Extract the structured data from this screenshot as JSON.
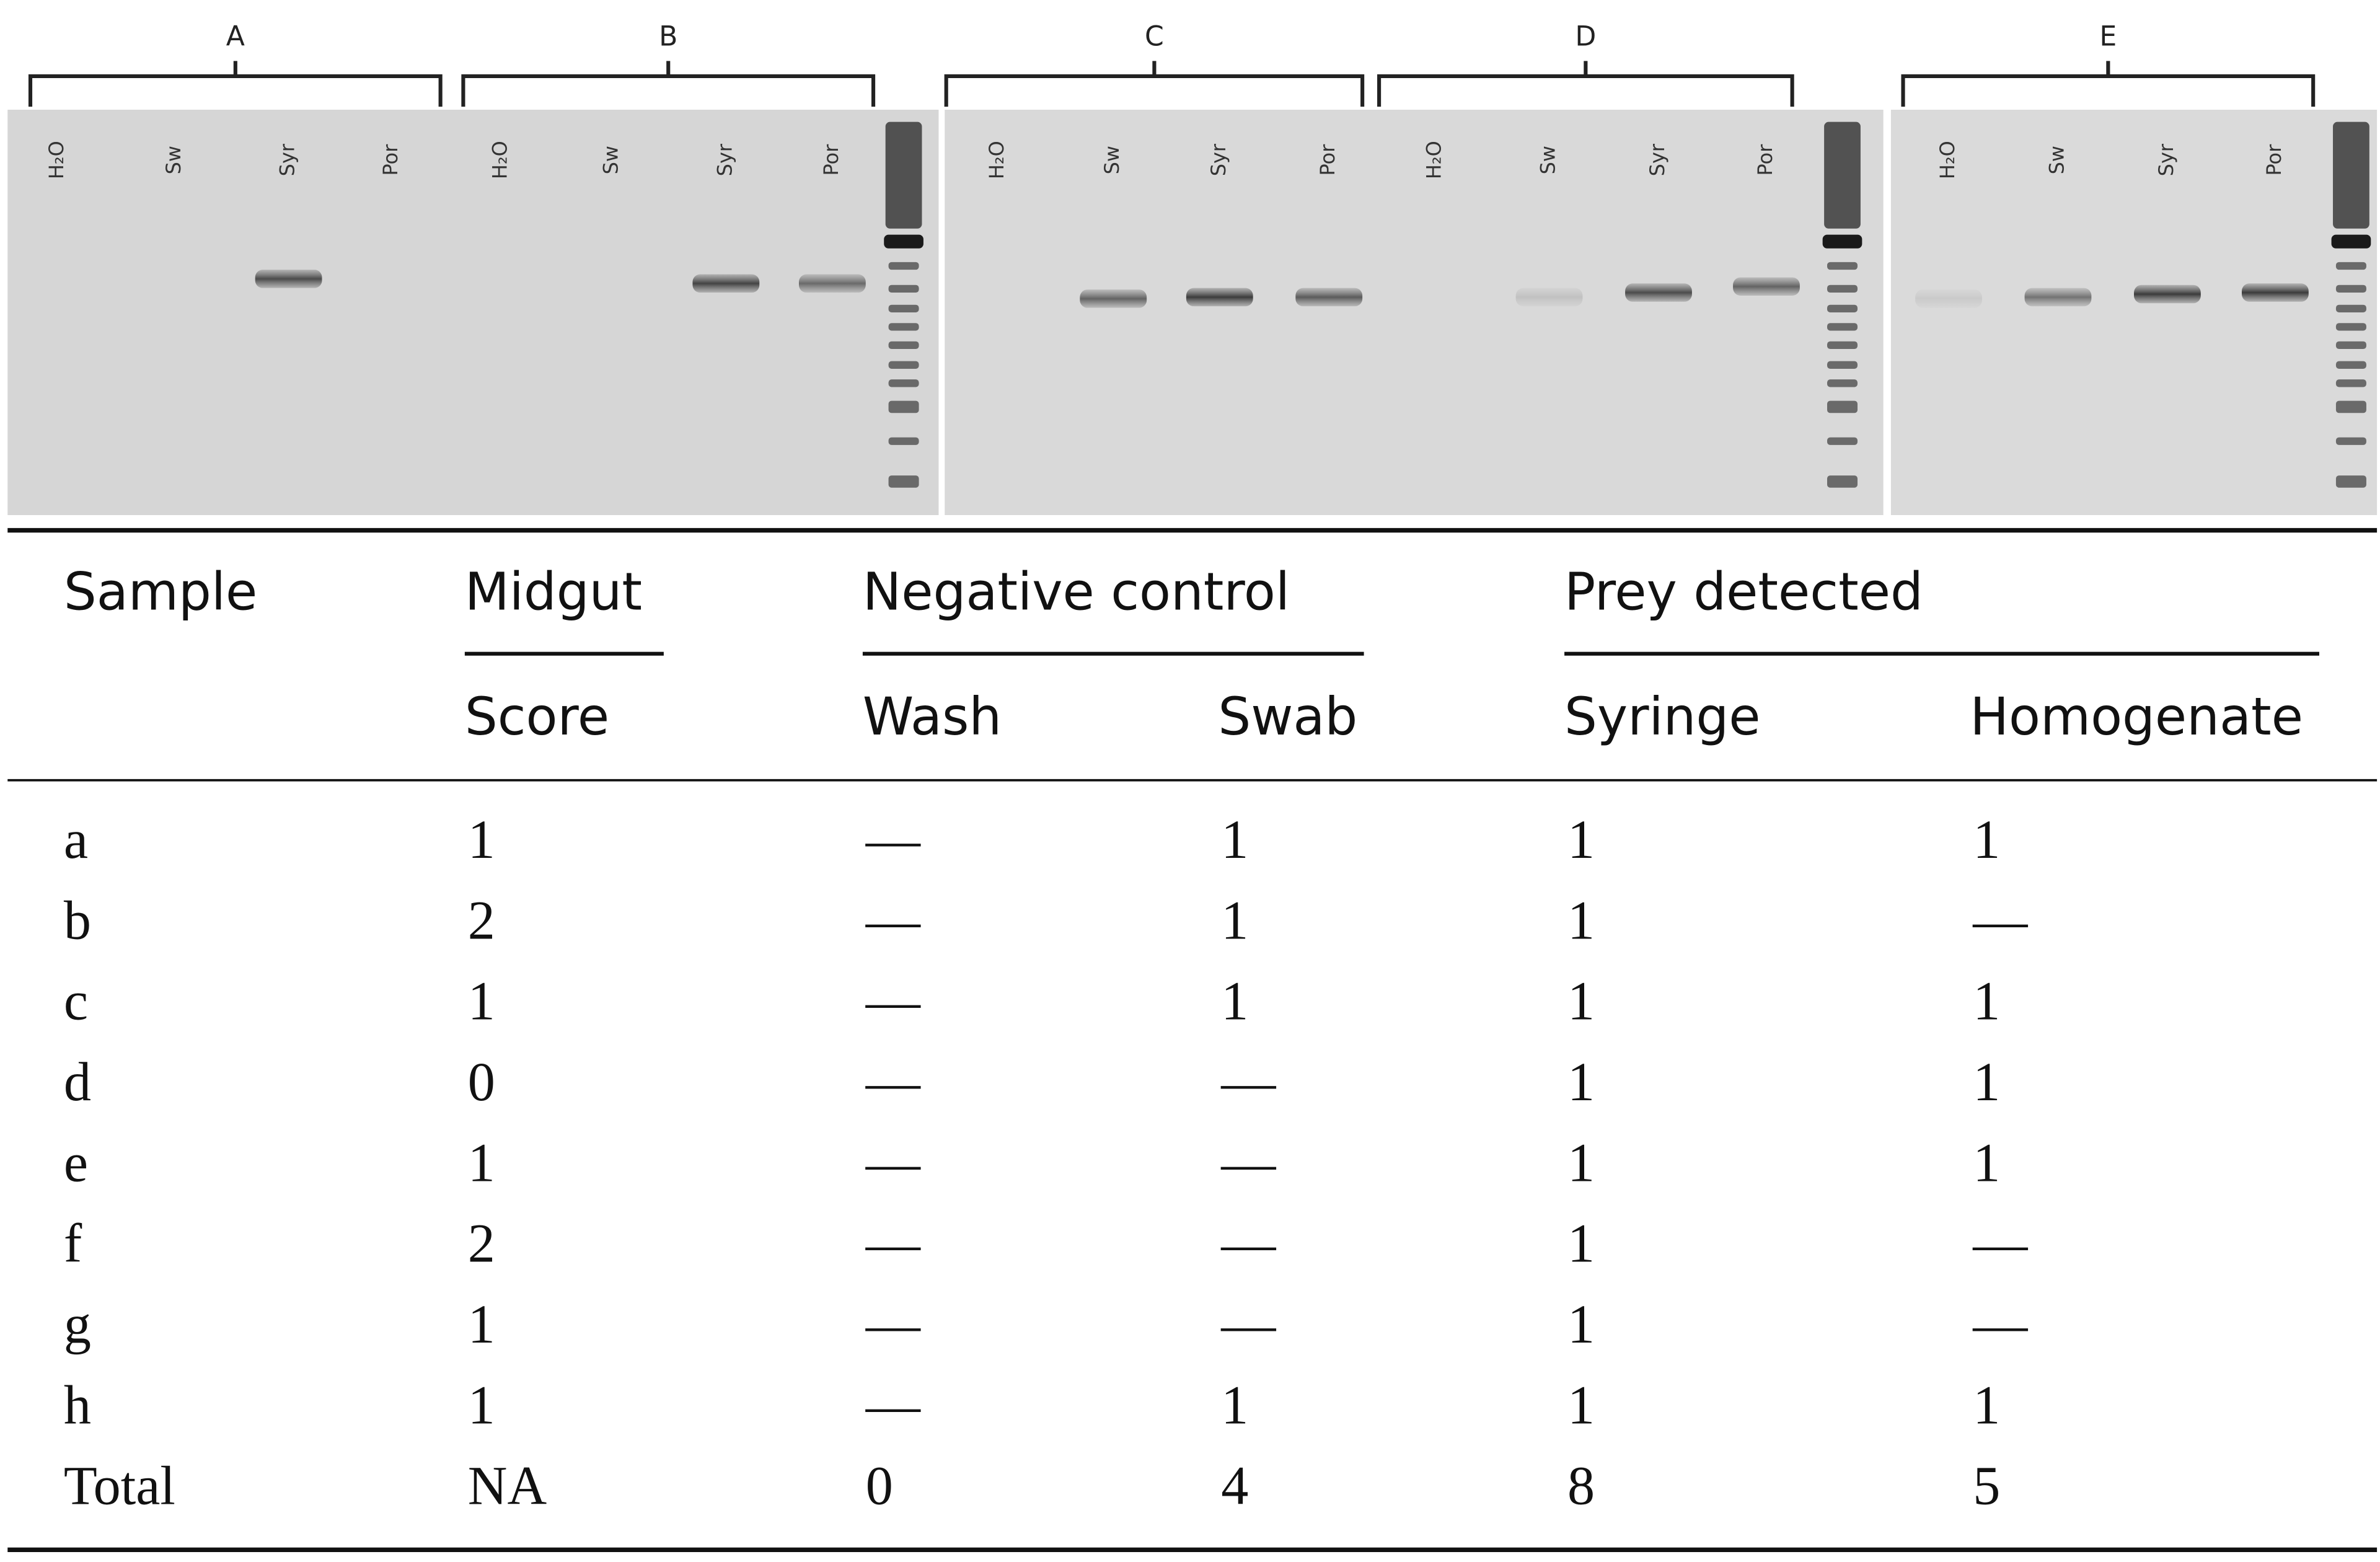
{
  "gel": {
    "groups": [
      {
        "label": "A",
        "lanes": [
          "H₂O",
          "Sw",
          "Syr",
          "Por"
        ]
      },
      {
        "label": "B",
        "lanes": [
          "H₂O",
          "Sw",
          "Syr",
          "Por"
        ]
      },
      {
        "label": "C",
        "lanes": [
          "H₂O",
          "Sw",
          "Syr",
          "Por"
        ]
      },
      {
        "label": "D",
        "lanes": [
          "H₂O",
          "Sw",
          "Syr",
          "Por"
        ]
      },
      {
        "label": "E",
        "lanes": [
          "H₂O",
          "Sw",
          "Syr",
          "Por"
        ]
      }
    ]
  },
  "table": {
    "header_groups": [
      "Sample",
      "Midgut",
      "Negative control",
      "Prey detected"
    ],
    "subheaders": [
      "Score",
      "Wash",
      "Swab",
      "Syringe",
      "Homogenate"
    ],
    "rows": [
      [
        "a",
        1,
        "—",
        1,
        1,
        1
      ],
      [
        "b",
        2,
        "—",
        1,
        1,
        "—"
      ],
      [
        "c",
        1,
        "—",
        1,
        1,
        1
      ],
      [
        "d",
        0,
        "—",
        "—",
        1,
        1
      ],
      [
        "e",
        1,
        "—",
        "—",
        1,
        1
      ],
      [
        "f",
        2,
        "—",
        "—",
        1,
        "—"
      ],
      [
        "g",
        1,
        "—",
        "—",
        1,
        "—"
      ],
      [
        "h",
        1,
        "—",
        1,
        1,
        1
      ],
      [
        "Total",
        "NA",
        0,
        4,
        8,
        5
      ]
    ]
  }
}
